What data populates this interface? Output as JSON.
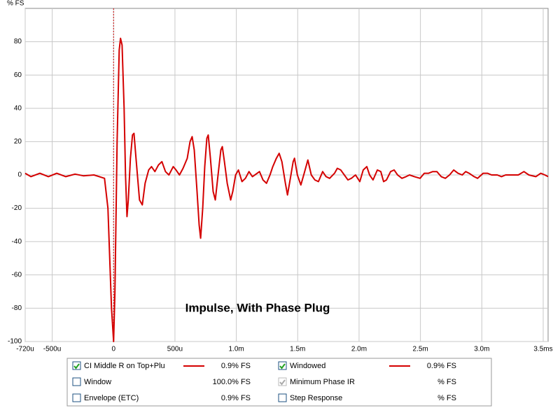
{
  "chart_data": {
    "type": "line",
    "y_axis_label": "% FS",
    "annotation": "Impulse, With Phase Plug",
    "xlim": [
      -0.72,
      3.54
    ],
    "ylim": [
      -100,
      100
    ],
    "xticks": [
      {
        "value": -0.72,
        "label": "-720u"
      },
      {
        "value": -0.5,
        "label": "-500u"
      },
      0,
      {
        "value": 0.5,
        "label": "500u"
      },
      {
        "value": 1,
        "label": "1.0m"
      },
      {
        "value": 1.5,
        "label": "1.5m"
      },
      {
        "value": 2,
        "label": "2.0m"
      },
      {
        "value": 2.5,
        "label": "2.5m"
      },
      {
        "value": 3,
        "label": "3.0m"
      },
      {
        "value": 3.5,
        "label": "3.5ms"
      }
    ],
    "yticks": [
      -100,
      -80,
      -60,
      -40,
      -20,
      0,
      20,
      40,
      60,
      80
    ],
    "grid": true,
    "marker_x": 0,
    "marker_color": "#cc0000",
    "series": [
      {
        "name": "CI Middle R on Top+Plu",
        "color": "#d40000",
        "readout": "0.9% FS",
        "checked": true,
        "x": [
          -0.72,
          -0.674,
          -0.6,
          -0.531,
          -0.463,
          -0.389,
          -0.314,
          -0.246,
          -0.16,
          -0.074,
          -0.046,
          -0.017,
          0,
          0.011,
          0.029,
          0.046,
          0.057,
          0.069,
          0.086,
          0.097,
          0.109,
          0.12,
          0.137,
          0.154,
          0.166,
          0.183,
          0.211,
          0.234,
          0.257,
          0.286,
          0.309,
          0.337,
          0.366,
          0.394,
          0.423,
          0.451,
          0.486,
          0.509,
          0.537,
          0.566,
          0.6,
          0.623,
          0.64,
          0.657,
          0.68,
          0.697,
          0.709,
          0.726,
          0.743,
          0.76,
          0.771,
          0.789,
          0.811,
          0.829,
          0.851,
          0.874,
          0.886,
          0.903,
          0.926,
          0.954,
          0.971,
          0.994,
          1.017,
          1.046,
          1.074,
          1.103,
          1.131,
          1.16,
          1.189,
          1.217,
          1.246,
          1.274,
          1.297,
          1.326,
          1.349,
          1.371,
          1.4,
          1.417,
          1.44,
          1.463,
          1.474,
          1.497,
          1.526,
          1.549,
          1.583,
          1.611,
          1.64,
          1.669,
          1.703,
          1.731,
          1.76,
          1.8,
          1.823,
          1.851,
          1.88,
          1.909,
          1.937,
          1.971,
          2.006,
          2.034,
          2.063,
          2.086,
          2.114,
          2.149,
          2.177,
          2.2,
          2.223,
          2.257,
          2.286,
          2.314,
          2.349,
          2.383,
          2.411,
          2.451,
          2.497,
          2.531,
          2.566,
          2.6,
          2.634,
          2.669,
          2.703,
          2.737,
          2.771,
          2.806,
          2.84,
          2.869,
          2.897,
          2.937,
          2.966,
          3.011,
          3.046,
          3.08,
          3.126,
          3.16,
          3.194,
          3.24,
          3.297,
          3.343,
          3.383,
          3.44,
          3.48,
          3.514,
          3.54
        ],
        "values": [
          1,
          -1,
          1,
          -1,
          1,
          -1,
          0.5,
          -0.5,
          0,
          -2,
          -20,
          -80,
          -100,
          -70,
          20,
          75,
          82,
          78,
          40,
          0,
          -25,
          -15,
          10,
          24,
          25,
          10,
          -15,
          -18,
          -5,
          3,
          5,
          2,
          6,
          8,
          2,
          0,
          5,
          3,
          0,
          4,
          10,
          20,
          23,
          15,
          -10,
          -30,
          -38,
          -20,
          5,
          22,
          24,
          10,
          -10,
          -15,
          0,
          15,
          17,
          8,
          -5,
          -15,
          -10,
          0,
          3,
          -4,
          -2,
          2,
          -1,
          0.5,
          2,
          -3,
          -5,
          0,
          5,
          10,
          13,
          8,
          -5,
          -12,
          -2,
          8,
          10,
          0,
          -6,
          0,
          9,
          0,
          -3,
          -4,
          2,
          -1,
          -2,
          1,
          4,
          3,
          0,
          -3,
          -2,
          0,
          -4,
          3,
          5,
          0,
          -3,
          3,
          2,
          -4,
          -3,
          2,
          3,
          0,
          -2,
          -1,
          0,
          -1,
          -2,
          1,
          1,
          2,
          2,
          -1,
          -2,
          0,
          3,
          1,
          0,
          2,
          1,
          -1,
          -2,
          1,
          1,
          0,
          0,
          -1,
          0,
          0,
          0,
          2,
          0,
          -1,
          1,
          0,
          -1
        ]
      }
    ]
  },
  "other_traces": [
    {
      "name": "Window",
      "readout": "100.0% FS",
      "checked": false,
      "color": "#000080"
    },
    {
      "name": "Envelope (ETC)",
      "readout": "0.9% FS",
      "checked": false,
      "color": "#000000"
    },
    {
      "name": "Windowed",
      "readout": "0.9% FS",
      "checked": true,
      "color": "#cc0000",
      "line_color": "#d40000"
    },
    {
      "name": "Minimum Phase IR",
      "readout": "% FS",
      "checked": true,
      "color": "#999999",
      "disabled": true
    },
    {
      "name": "Step Response",
      "readout": "% FS",
      "checked": false,
      "color": "#000000"
    }
  ]
}
